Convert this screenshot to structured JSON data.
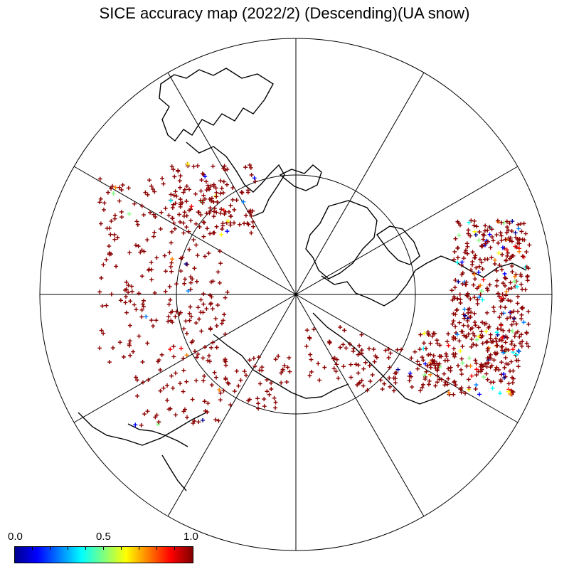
{
  "title": "SICE accuracy map (2022/2) (Descending)(UA snow)",
  "colorbar": {
    "min_label": "0.0",
    "mid_label": "0.5",
    "max_label": "1.0",
    "colors": [
      "#00008f",
      "#0000ff",
      "#007fff",
      "#00ffff",
      "#7fff7f",
      "#ffff00",
      "#ff7f00",
      "#ff0000",
      "#7f0000"
    ]
  },
  "map": {
    "projection": "north polar stereographic",
    "meridian_count": 12,
    "parallel_circles": 1,
    "marker": "plus",
    "dominant_marker_color": "#8b0000"
  }
}
